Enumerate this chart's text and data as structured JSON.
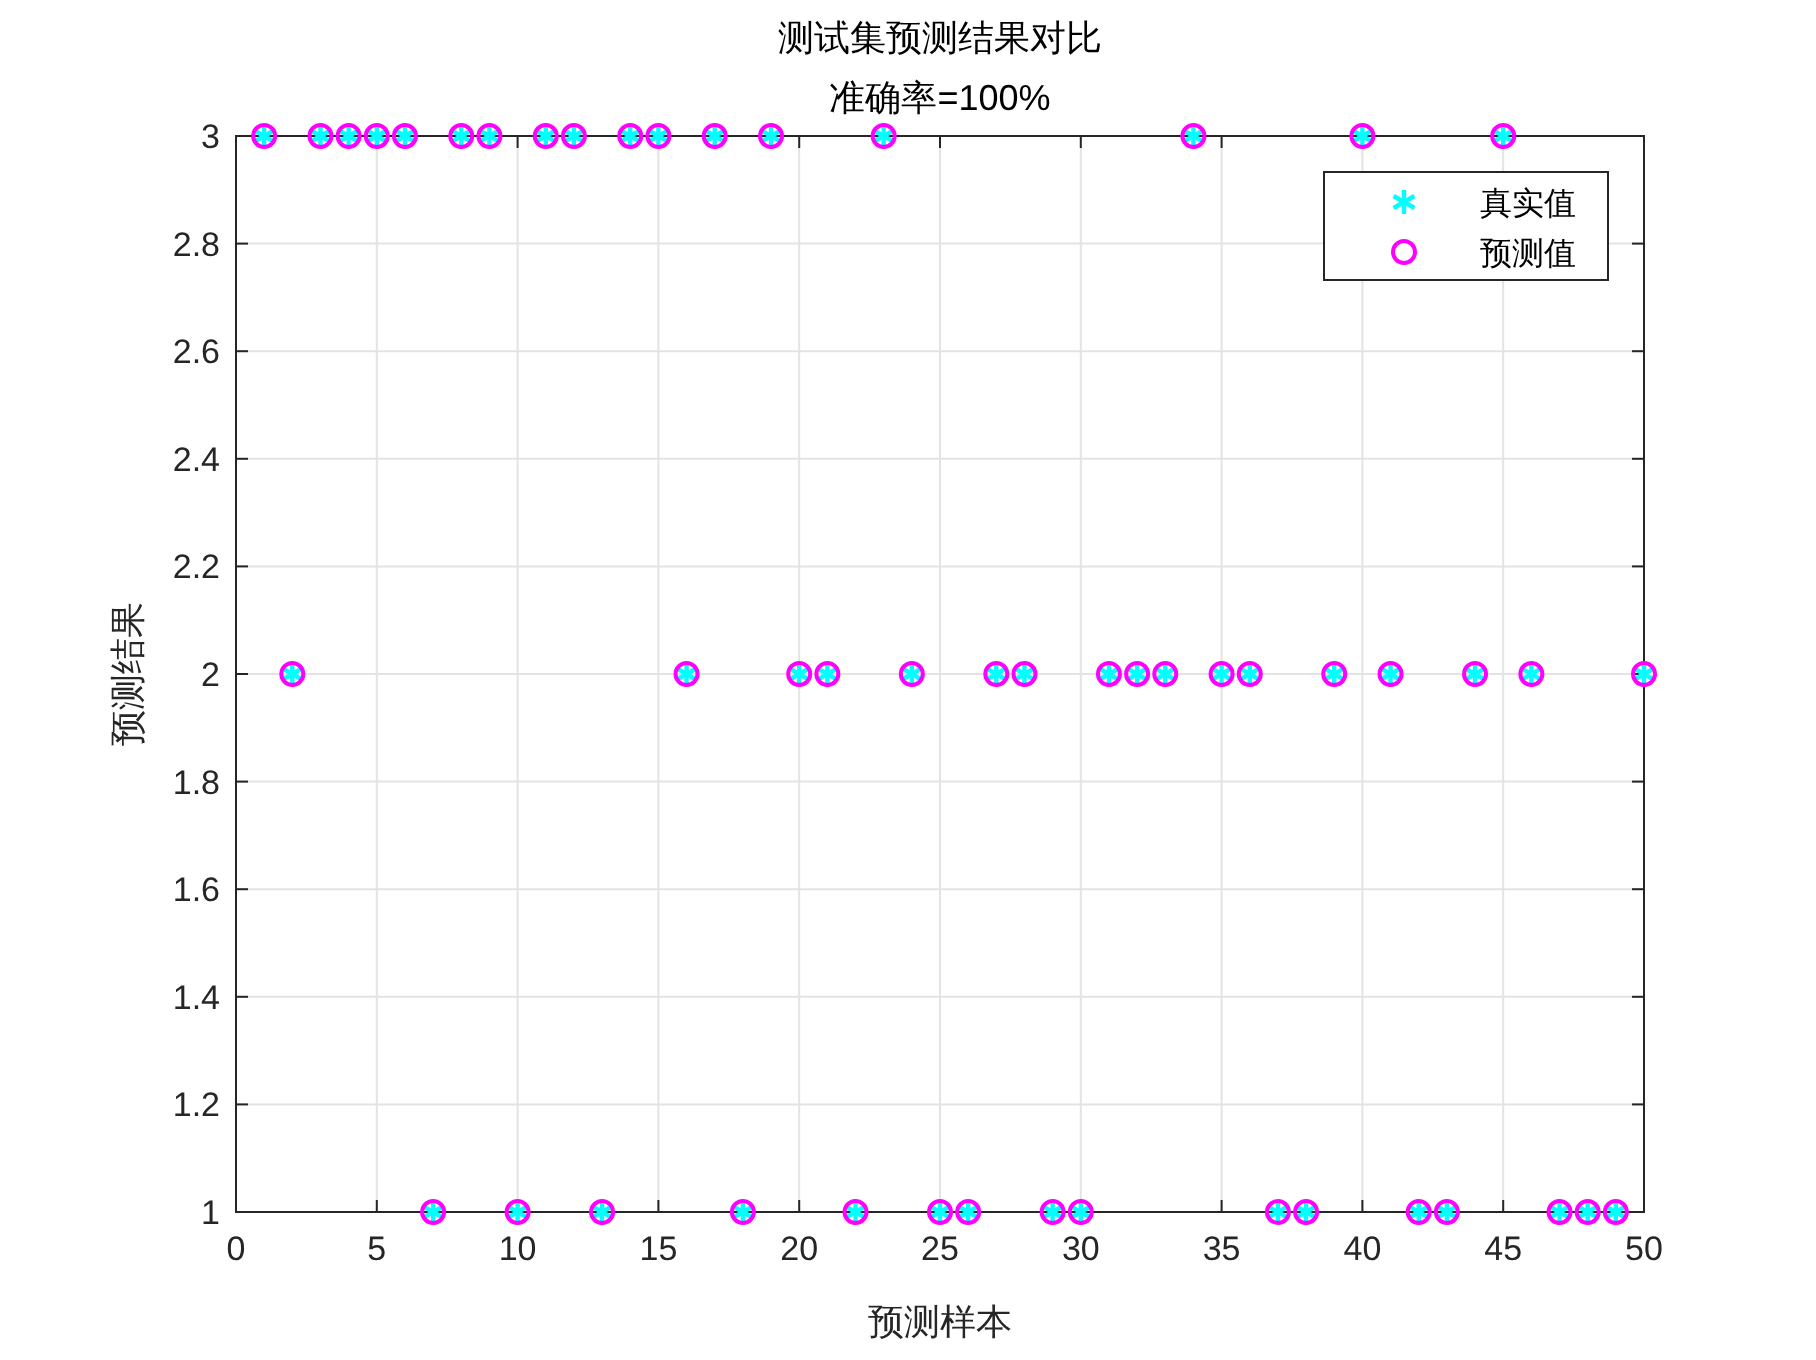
{
  "chart_data": {
    "type": "scatter",
    "title": "测试集预测结果对比",
    "subtitle": "准确率=100%",
    "xlabel": "预测样本",
    "ylabel": "预测结果",
    "x": [
      1,
      2,
      3,
      4,
      5,
      6,
      7,
      8,
      9,
      10,
      11,
      12,
      13,
      14,
      15,
      16,
      17,
      18,
      19,
      20,
      21,
      22,
      23,
      24,
      25,
      26,
      27,
      28,
      29,
      30,
      31,
      32,
      33,
      34,
      35,
      36,
      37,
      38,
      39,
      40,
      41,
      42,
      43,
      44,
      45,
      46,
      47,
      48,
      49,
      50
    ],
    "series": [
      {
        "name": "真实值",
        "color": "#00ffff",
        "marker": "cross",
        "values": [
          3,
          2,
          3,
          3,
          3,
          3,
          1,
          3,
          3,
          1,
          3,
          3,
          1,
          3,
          3,
          2,
          3,
          1,
          3,
          2,
          2,
          1,
          3,
          2,
          1,
          1,
          2,
          2,
          1,
          1,
          2,
          2,
          2,
          3,
          2,
          2,
          1,
          1,
          2,
          3,
          2,
          1,
          1,
          2,
          3,
          2,
          1,
          1,
          1,
          2
        ]
      },
      {
        "name": "预测值",
        "color": "#ff00ff",
        "marker": "circle",
        "values": [
          3,
          2,
          3,
          3,
          3,
          3,
          1,
          3,
          3,
          1,
          3,
          3,
          1,
          3,
          3,
          2,
          3,
          1,
          3,
          2,
          2,
          1,
          3,
          2,
          1,
          1,
          2,
          2,
          1,
          1,
          2,
          2,
          2,
          3,
          2,
          2,
          1,
          1,
          2,
          3,
          2,
          1,
          1,
          2,
          3,
          2,
          1,
          1,
          1,
          2
        ]
      }
    ],
    "xlim": [
      0,
      50
    ],
    "xticks": [
      0,
      5,
      10,
      15,
      20,
      25,
      30,
      35,
      40,
      45,
      50
    ],
    "ylim": [
      1,
      3
    ],
    "yticks": [
      1,
      1.2,
      1.4,
      1.6,
      1.8,
      2,
      2.2,
      2.4,
      2.6,
      2.8,
      3
    ],
    "grid": true,
    "legend": "top right"
  }
}
